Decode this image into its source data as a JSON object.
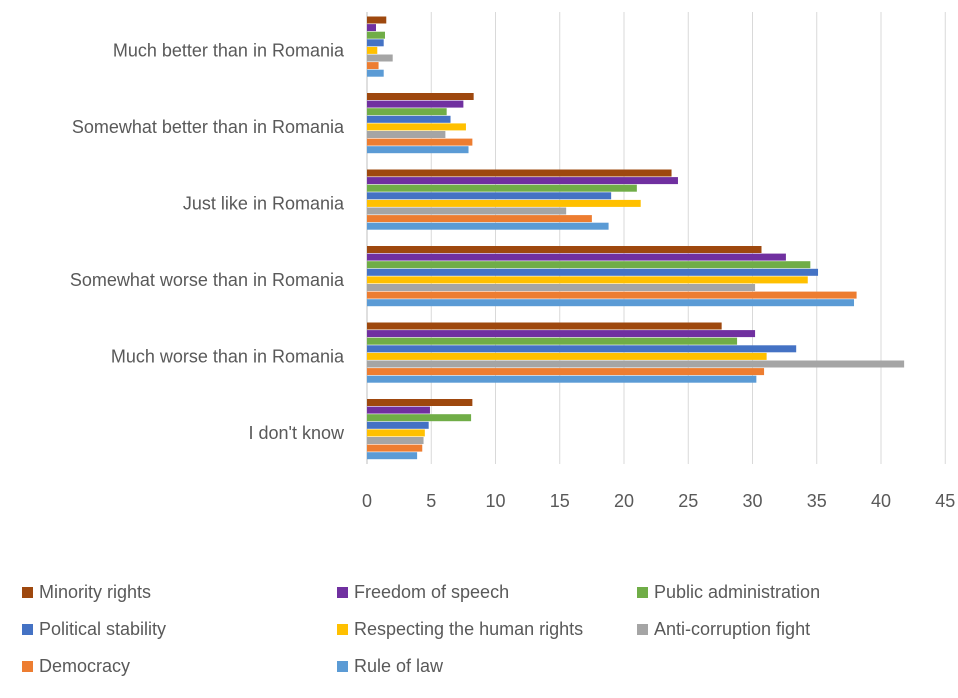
{
  "chart_data": {
    "type": "bar",
    "orientation": "horizontal",
    "categories": [
      "Much better than in Romania",
      "Somewhat better than in Romania",
      "Just like in Romania",
      "Somewhat worse than in Romania",
      "Much worse than in Romania",
      "I don't know"
    ],
    "series": [
      {
        "name": "Minority rights",
        "color": "#9E480E",
        "values": [
          1.5,
          8.3,
          23.7,
          30.7,
          27.6,
          8.2
        ]
      },
      {
        "name": "Freedom of speech",
        "color": "#7030A0",
        "values": [
          0.7,
          7.5,
          24.2,
          32.6,
          30.2,
          4.9
        ]
      },
      {
        "name": "Public administration",
        "color": "#70AD47",
        "values": [
          1.4,
          6.2,
          21.0,
          34.5,
          28.8,
          8.1
        ]
      },
      {
        "name": "Political stability",
        "color": "#4472C4",
        "values": [
          1.3,
          6.5,
          19.0,
          35.1,
          33.4,
          4.8
        ]
      },
      {
        "name": "Respecting the human rights",
        "color": "#FFC000",
        "values": [
          0.8,
          7.7,
          21.3,
          34.3,
          31.1,
          4.5
        ]
      },
      {
        "name": "Anti-corruption fight",
        "color": "#A5A5A5",
        "values": [
          2.0,
          6.1,
          15.5,
          30.2,
          41.8,
          4.4
        ]
      },
      {
        "name": "Democracy",
        "color": "#ED7D31",
        "values": [
          0.9,
          8.2,
          17.5,
          38.1,
          30.9,
          4.3
        ]
      },
      {
        "name": "Rule of law",
        "color": "#5B9BD5",
        "values": [
          1.3,
          7.9,
          18.8,
          37.9,
          30.3,
          3.9
        ]
      }
    ],
    "xlim": [
      0,
      45
    ],
    "xticks": [
      "0",
      "5",
      "10",
      "15",
      "20",
      "25",
      "30",
      "35",
      "40",
      "45"
    ],
    "grid": "vertical",
    "legend_position": "bottom"
  }
}
